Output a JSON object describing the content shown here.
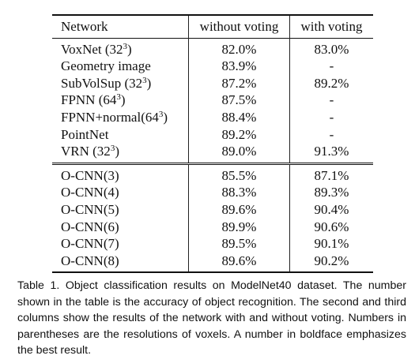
{
  "table": {
    "headers": [
      "Network",
      "without voting",
      "with voting"
    ],
    "groups": [
      [
        {
          "name": "VoxNet (32",
          "sup": "3",
          "suffix": ")",
          "without": "82.0%",
          "with": "83.0%",
          "bold": ""
        },
        {
          "name": "Geometry image",
          "sup": "",
          "suffix": "",
          "without": "83.9%",
          "with": "-",
          "bold": ""
        },
        {
          "name": "SubVolSup (32",
          "sup": "3",
          "suffix": ")",
          "without": "87.2%",
          "with": "89.2%",
          "bold": ""
        },
        {
          "name": "FPNN (64",
          "sup": "3",
          "suffix": ")",
          "without": "87.5%",
          "with": "-",
          "bold": ""
        },
        {
          "name": "FPNN+normal(64",
          "sup": "3",
          "suffix": ")",
          "without": "88.4%",
          "with": "-",
          "bold": ""
        },
        {
          "name": "PointNet",
          "sup": "",
          "suffix": "",
          "without": "89.2%",
          "with": "-",
          "bold": ""
        },
        {
          "name": "VRN (32",
          "sup": "3",
          "suffix": ")",
          "without": "89.0%",
          "with": "91.3%",
          "bold": "with"
        }
      ],
      [
        {
          "name": "O-CNN(3)",
          "sup": "",
          "suffix": "",
          "without": "85.5%",
          "with": "87.1%",
          "bold": ""
        },
        {
          "name": "O-CNN(4)",
          "sup": "",
          "suffix": "",
          "without": "88.3%",
          "with": "89.3%",
          "bold": ""
        },
        {
          "name": "O-CNN(5)",
          "sup": "",
          "suffix": "",
          "without": "89.6%",
          "with": "90.4%",
          "bold": ""
        },
        {
          "name": "O-CNN(6)",
          "sup": "",
          "suffix": "",
          "without": "89.9%",
          "with": "90.6%",
          "bold": "without"
        },
        {
          "name": "O-CNN(7)",
          "sup": "",
          "suffix": "",
          "without": "89.5%",
          "with": "90.1%",
          "bold": ""
        },
        {
          "name": "O-CNN(8)",
          "sup": "",
          "suffix": "",
          "without": "89.6%",
          "with": "90.2%",
          "bold": ""
        }
      ]
    ]
  },
  "caption": "Table 1.  Object classification results on ModelNet40 dataset. The number shown in the table is the accuracy of object recognition. The second and third columns show the results of the network with and without voting. Numbers in parentheses are the resolutions of voxels. A number in boldface emphasizes the best result."
}
